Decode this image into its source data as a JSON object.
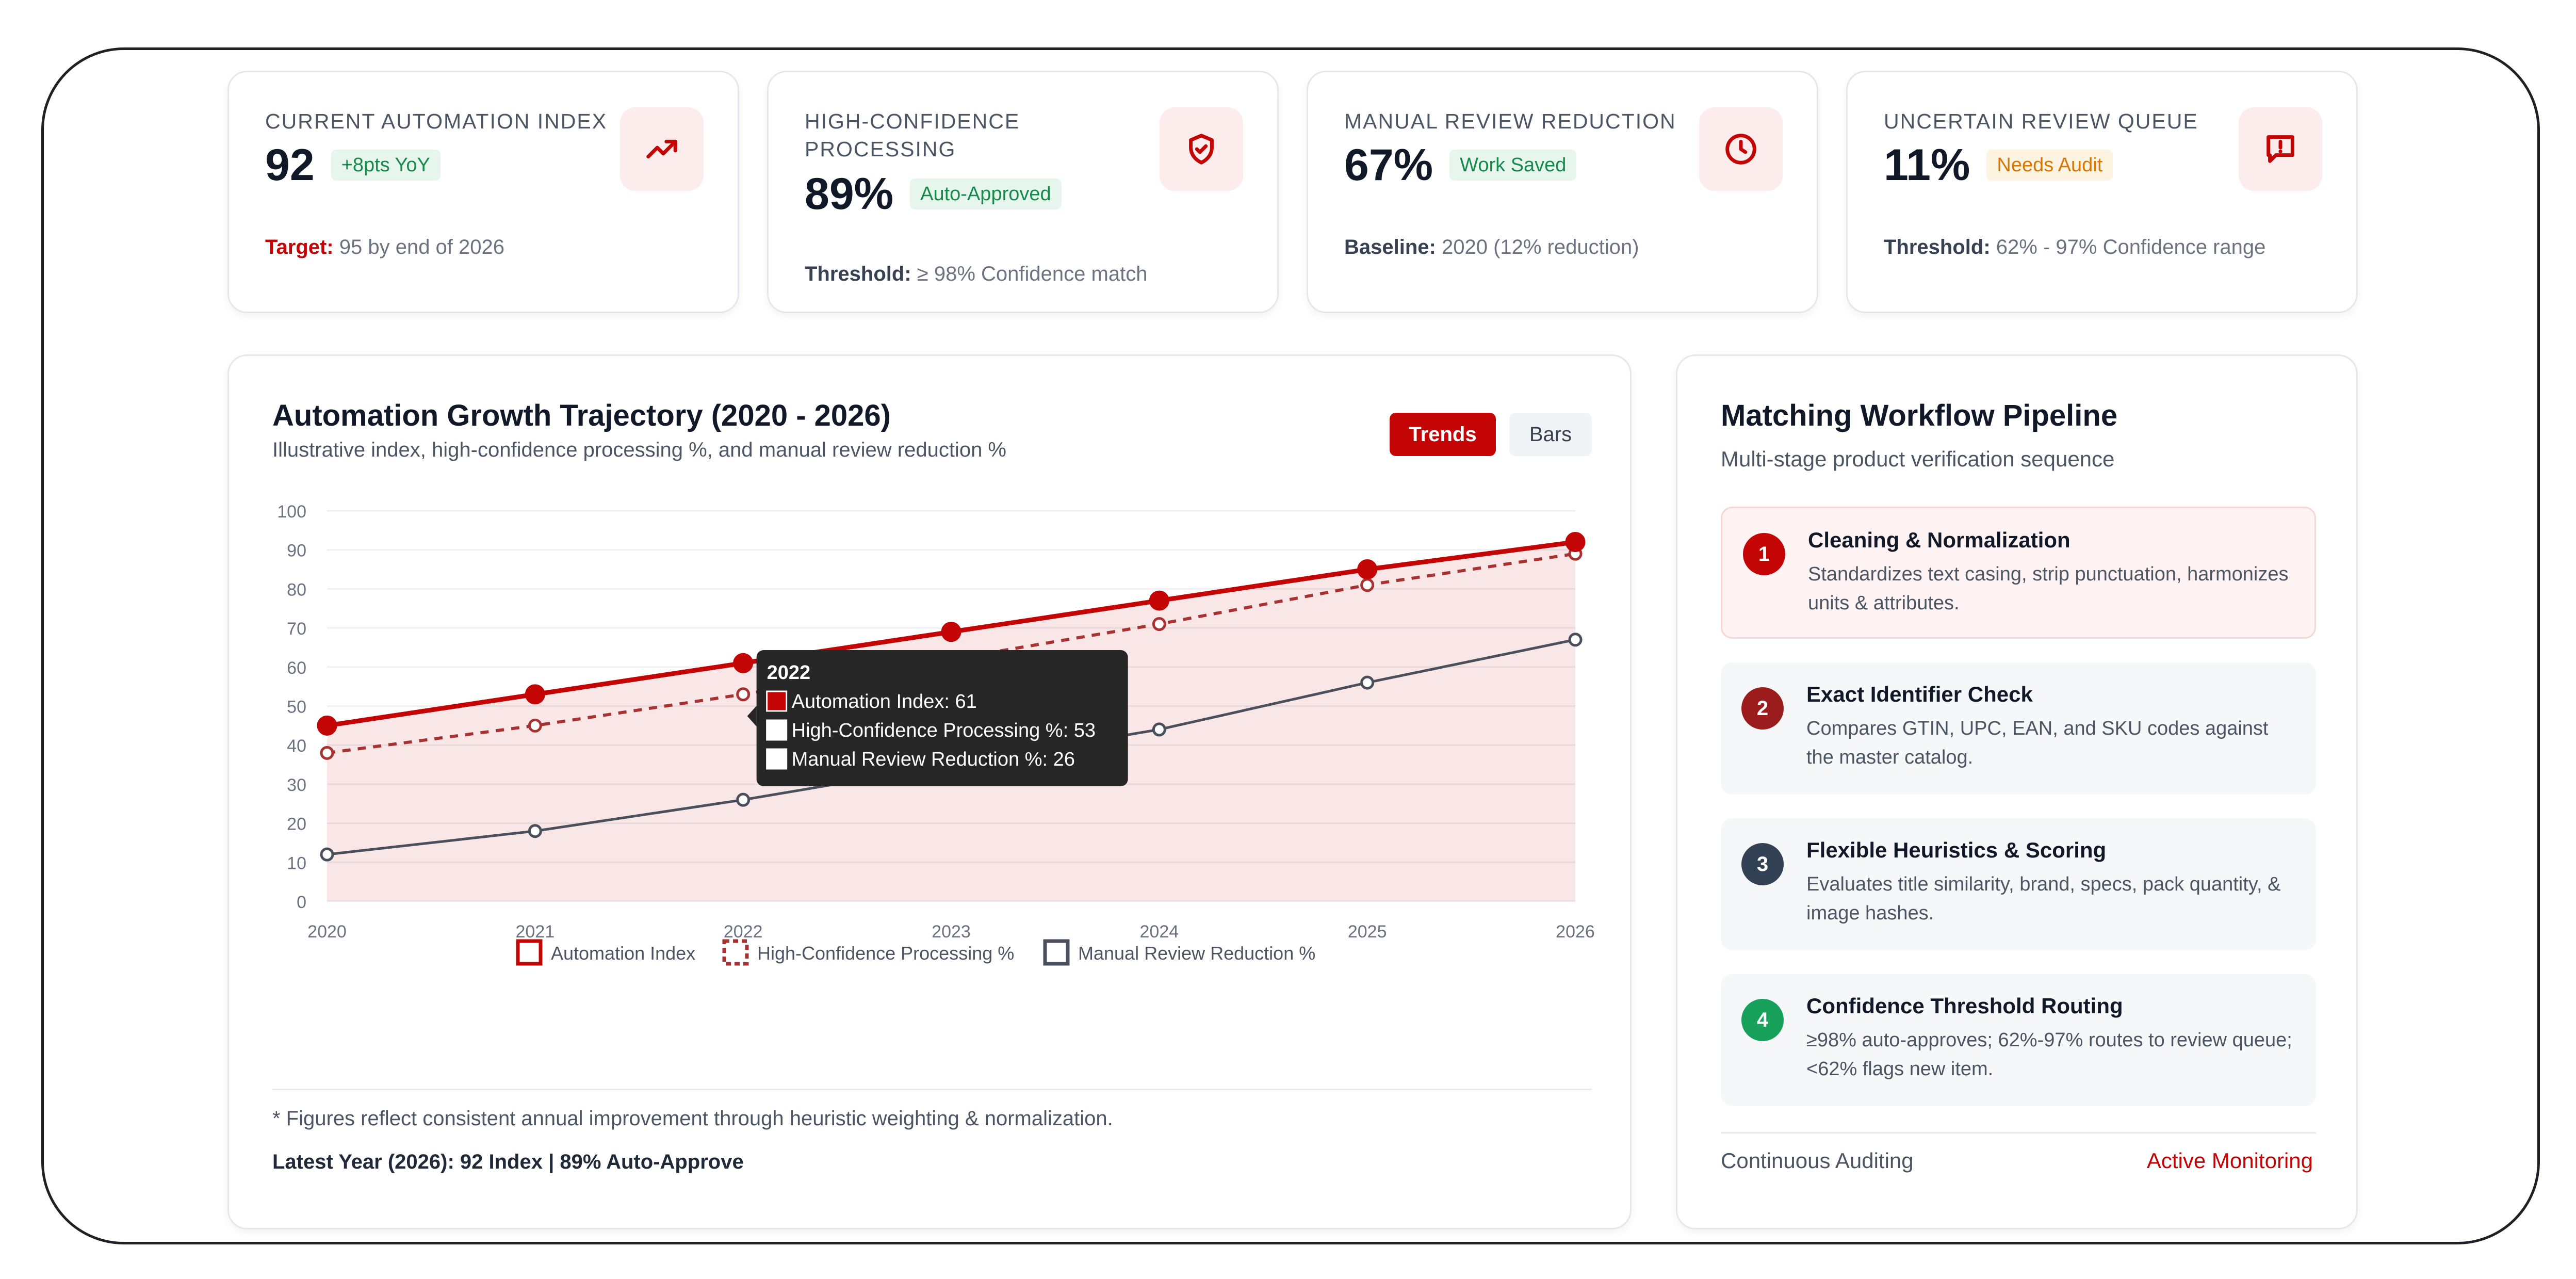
{
  "kpis": [
    {
      "label": "CURRENT AUTOMATION INDEX",
      "value": "92",
      "pill": "+8pts YoY",
      "pill_color": "green",
      "foot_label": "Target:",
      "foot_text": "95 by end of 2026",
      "icon": "trending-up-icon"
    },
    {
      "label": "HIGH-CONFIDENCE PROCESSING",
      "value": "89%",
      "pill": "Auto-Approved",
      "pill_color": "green",
      "foot_label": "Threshold:",
      "foot_text": "≥ 98% Confidence match",
      "icon": "shield-check-icon"
    },
    {
      "label": "MANUAL REVIEW REDUCTION",
      "value": "67%",
      "pill": "Work Saved",
      "pill_color": "green",
      "foot_label": "Baseline:",
      "foot_text": "2020 (12% reduction)",
      "icon": "clock-icon"
    },
    {
      "label": "UNCERTAIN REVIEW QUEUE",
      "value": "11%",
      "pill": "Needs Audit",
      "pill_color": "orange",
      "foot_label": "Threshold:",
      "foot_text": "62% - 97% Confidence range",
      "icon": "message-alert-icon"
    }
  ],
  "chart_card": {
    "title": "Automation Growth Trajectory (2020 - 2026)",
    "subtitle": "Illustrative index, high-confidence processing %, and manual review reduction %",
    "toggle_trends": "Trends",
    "toggle_bars": "Bars",
    "note": "* Figures reflect consistent annual improvement through heuristic weighting & normalization.",
    "latest": "Latest Year (2026): 92 Index | 89% Auto-Approve"
  },
  "chart_data": {
    "type": "line",
    "x": [
      "2020",
      "2021",
      "2022",
      "2023",
      "2024",
      "2025",
      "2026"
    ],
    "yticks": [
      "0",
      "10",
      "20",
      "30",
      "40",
      "50",
      "60",
      "70",
      "80",
      "90",
      "100"
    ],
    "ylim": [
      0,
      100
    ],
    "grid": true,
    "legend": "bottom",
    "series": [
      {
        "name": "Automation Index",
        "values": [
          45,
          53,
          61,
          69,
          77,
          85,
          92
        ],
        "color": "#c40505",
        "style": "solid-filled"
      },
      {
        "name": "High-Confidence Processing %",
        "values": [
          38,
          45,
          53,
          62,
          71,
          81,
          89
        ],
        "color": "#a83232",
        "style": "dashed"
      },
      {
        "name": "Manual Review Reduction %",
        "values": [
          12,
          18,
          26,
          35,
          44,
          56,
          67
        ],
        "color": "#4a4f5c",
        "style": "solid"
      }
    ],
    "tooltip": {
      "title": "2022",
      "lines": [
        "Automation Index: 61",
        "High-Confidence Processing %: 53",
        "Manual Review Reduction %: 26"
      ]
    }
  },
  "pipeline": {
    "title": "Matching Workflow Pipeline",
    "subtitle": "Multi-stage product verification sequence",
    "steps": [
      {
        "num": "1",
        "title": "Cleaning & Normalization",
        "desc": "Standardizes text casing, strip punctuation, harmonizes units & attributes.",
        "color": "#c40505"
      },
      {
        "num": "2",
        "title": "Exact Identifier Check",
        "desc": "Compares GTIN, UPC, EAN, and SKU codes against the master catalog.",
        "color": "#9b1c1c"
      },
      {
        "num": "3",
        "title": "Flexible Heuristics & Scoring",
        "desc": "Evaluates title similarity, brand, specs, pack quantity, & image hashes.",
        "color": "#334155"
      },
      {
        "num": "4",
        "title": "Confidence Threshold Routing",
        "desc": "≥98% auto-approves; 62%-97% routes to review queue; <62% flags new item.",
        "color": "#16a05a"
      }
    ],
    "foot_left": "Continuous Auditing",
    "foot_right": "Active Monitoring"
  }
}
